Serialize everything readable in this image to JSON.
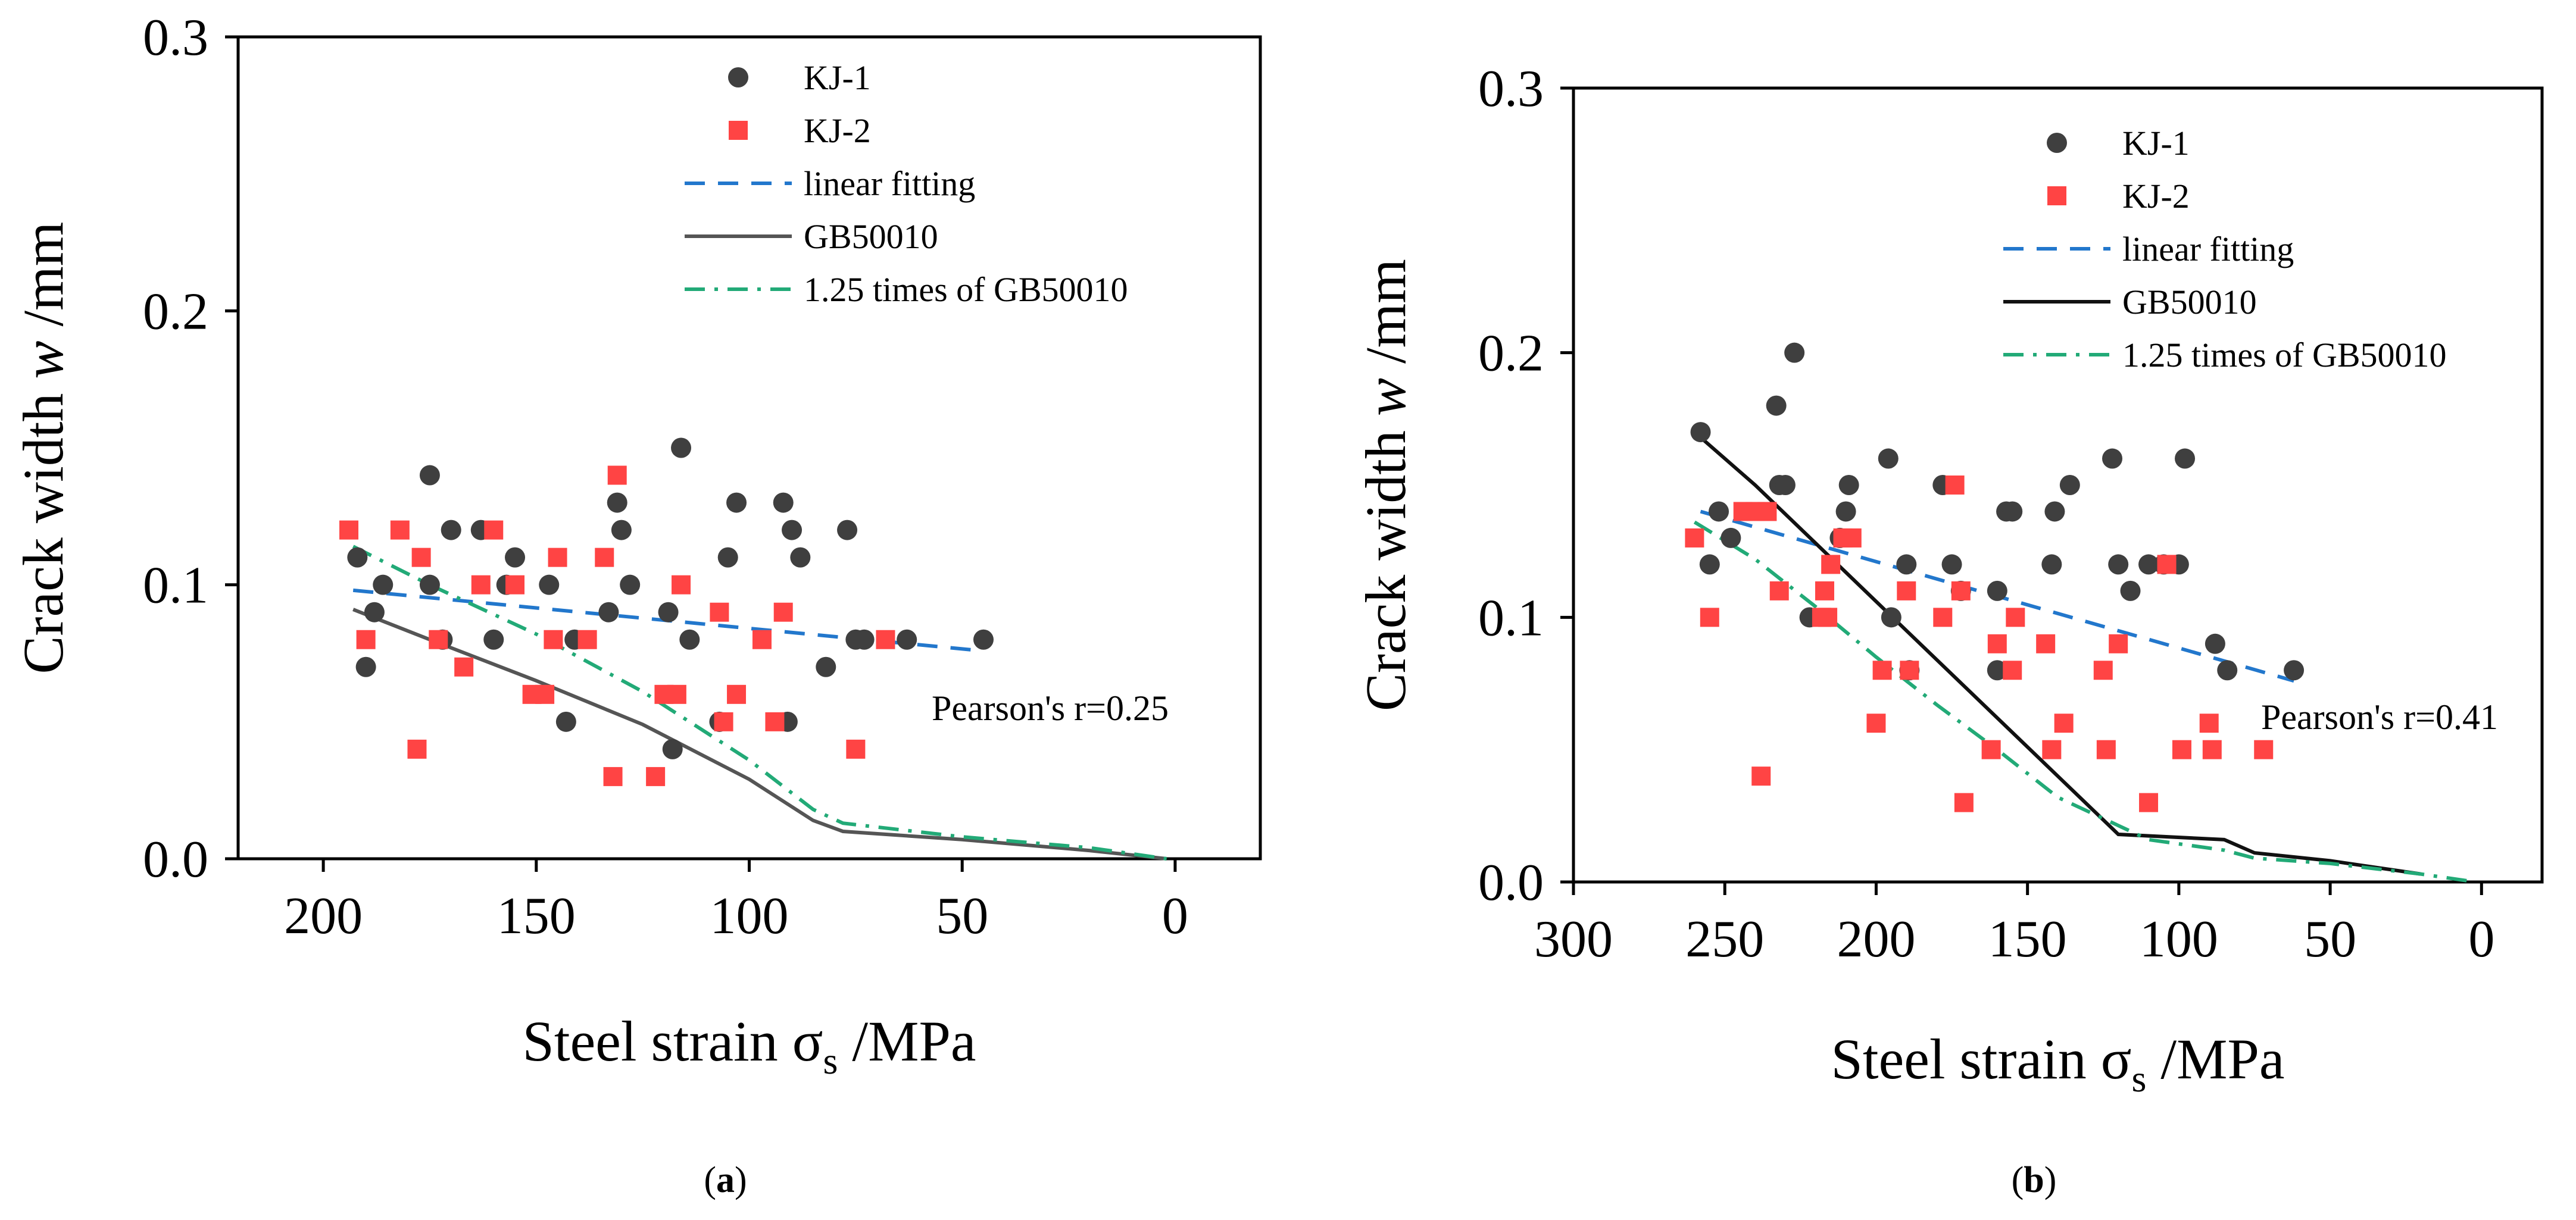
{
  "chart_data": [
    {
      "type": "scatter",
      "panel": "(a)",
      "panel_letter": "a",
      "xlabel": "Steel strain σs /MPa",
      "xlabel_main": "Steel strain σ",
      "xlabel_sub": "s",
      "xlabel_unit": " /MPa",
      "ylabel": "Crack width w /mm",
      "ylabel_pre": "Crack width ",
      "ylabel_var": "w",
      "ylabel_unit": " /mm",
      "xlim": [
        220,
        -20
      ],
      "ylim": [
        0,
        0.3
      ],
      "xticks": [
        200,
        150,
        100,
        50,
        0
      ],
      "xtick_labels": [
        "200",
        "150",
        "100",
        "50",
        "0"
      ],
      "yticks": [
        0.0,
        0.1,
        0.2,
        0.3
      ],
      "ytick_labels": [
        "0.0",
        "0.1",
        "0.2",
        "0.3"
      ],
      "legend": [
        "KJ-1",
        "KJ-2",
        "linear fitting",
        "GB50010",
        "1.25 times of GB50010"
      ],
      "annotation": "Pearson's r=0.25",
      "series": [
        {
          "name": "KJ-1",
          "marker": "circle",
          "color": "#3f3f3f",
          "points": [
            [
              192,
              0.11
            ],
            [
              190,
              0.07
            ],
            [
              188,
              0.09
            ],
            [
              186,
              0.1
            ],
            [
              175,
              0.14
            ],
            [
              175,
              0.1
            ],
            [
              172,
              0.08
            ],
            [
              170,
              0.12
            ],
            [
              163,
              0.12
            ],
            [
              160,
              0.08
            ],
            [
              157,
              0.1
            ],
            [
              155,
              0.11
            ],
            [
              147,
              0.1
            ],
            [
              143,
              0.05
            ],
            [
              141,
              0.08
            ],
            [
              133,
              0.09
            ],
            [
              131,
              0.13
            ],
            [
              130,
              0.12
            ],
            [
              128,
              0.1
            ],
            [
              119,
              0.09
            ],
            [
              118,
              0.04
            ],
            [
              116,
              0.15
            ],
            [
              114,
              0.08
            ],
            [
              107,
              0.05
            ],
            [
              105,
              0.11
            ],
            [
              103,
              0.13
            ],
            [
              92,
              0.13
            ],
            [
              91,
              0.05
            ],
            [
              90,
              0.12
            ],
            [
              88,
              0.11
            ],
            [
              82,
              0.07
            ],
            [
              77,
              0.12
            ],
            [
              75,
              0.08
            ],
            [
              73,
              0.08
            ],
            [
              63,
              0.08
            ],
            [
              45,
              0.08
            ]
          ]
        },
        {
          "name": "KJ-2",
          "marker": "square",
          "color": "#ff4444",
          "points": [
            [
              194,
              0.12
            ],
            [
              190,
              0.08
            ],
            [
              182,
              0.12
            ],
            [
              178,
              0.04
            ],
            [
              177,
              0.11
            ],
            [
              173,
              0.08
            ],
            [
              167,
              0.07
            ],
            [
              163,
              0.1
            ],
            [
              160,
              0.12
            ],
            [
              155,
              0.1
            ],
            [
              151,
              0.06
            ],
            [
              148,
              0.06
            ],
            [
              146,
              0.08
            ],
            [
              145,
              0.11
            ],
            [
              138,
              0.08
            ],
            [
              134,
              0.11
            ],
            [
              132,
              0.03
            ],
            [
              131,
              0.14
            ],
            [
              122,
              0.03
            ],
            [
              120,
              0.06
            ],
            [
              117,
              0.06
            ],
            [
              116,
              0.1
            ],
            [
              107,
              0.09
            ],
            [
              106,
              0.05
            ],
            [
              103,
              0.06
            ],
            [
              97,
              0.08
            ],
            [
              94,
              0.05
            ],
            [
              92,
              0.09
            ],
            [
              75,
              0.04
            ],
            [
              68,
              0.08
            ]
          ]
        },
        {
          "name": "linear fitting",
          "style": "dashed",
          "color": "#2277cc",
          "points": [
            [
              193,
              0.098
            ],
            [
              46,
              0.076
            ]
          ]
        },
        {
          "name": "GB50010",
          "style": "solid",
          "color": "#555555",
          "points": [
            [
              193,
              0.091
            ],
            [
              175,
              0.08
            ],
            [
              150,
              0.065
            ],
            [
              125,
              0.049
            ],
            [
              100,
              0.029
            ],
            [
              85,
              0.014
            ],
            [
              78,
              0.01
            ],
            [
              50,
              0.007
            ],
            [
              20,
              0.003
            ],
            [
              2,
              0.0
            ]
          ]
        },
        {
          "name": "1.25 times of GB50010",
          "style": "dashdot",
          "color": "#22aa77",
          "points": [
            [
              193,
              0.114
            ],
            [
              175,
              0.1
            ],
            [
              150,
              0.082
            ],
            [
              125,
              0.061
            ],
            [
              100,
              0.036
            ],
            [
              85,
              0.018
            ],
            [
              78,
              0.013
            ],
            [
              50,
              0.008
            ],
            [
              20,
              0.004
            ],
            [
              2,
              0.0
            ]
          ]
        }
      ]
    },
    {
      "type": "scatter",
      "panel": "(b)",
      "panel_letter": "b",
      "xlabel": "Steel strain σs /MPa",
      "xlabel_main": "Steel strain σ",
      "xlabel_sub": "s",
      "xlabel_unit": " /MPa",
      "ylabel": "Crack width w /mm",
      "ylabel_pre": "Crack width ",
      "ylabel_var": "w",
      "ylabel_unit": " /mm",
      "xlim": [
        300,
        -20
      ],
      "ylim": [
        0,
        0.3
      ],
      "xticks": [
        300,
        250,
        200,
        150,
        100,
        50,
        0
      ],
      "xtick_labels": [
        "300",
        "250",
        "200",
        "150",
        "100",
        "50",
        "0"
      ],
      "yticks": [
        0.0,
        0.1,
        0.2,
        0.3
      ],
      "ytick_labels": [
        "0.0",
        "0.1",
        "0.2",
        "0.3"
      ],
      "legend": [
        "KJ-1",
        "KJ-2",
        "linear fitting",
        "GB50010",
        "1.25 times of GB50010"
      ],
      "annotation": "Pearson's r=0.41",
      "series": [
        {
          "name": "KJ-1",
          "marker": "circle",
          "color": "#3f3f3f",
          "points": [
            [
              258,
              0.17
            ],
            [
              255,
              0.12
            ],
            [
              252,
              0.14
            ],
            [
              248,
              0.13
            ],
            [
              233,
              0.18
            ],
            [
              232,
              0.15
            ],
            [
              230,
              0.15
            ],
            [
              227,
              0.2
            ],
            [
              222,
              0.1
            ],
            [
              212,
              0.13
            ],
            [
              210,
              0.14
            ],
            [
              209,
              0.15
            ],
            [
              196,
              0.16
            ],
            [
              195,
              0.1
            ],
            [
              190,
              0.12
            ],
            [
              189,
              0.08
            ],
            [
              178,
              0.15
            ],
            [
              175,
              0.12
            ],
            [
              172,
              0.11
            ],
            [
              160,
              0.08
            ],
            [
              160,
              0.11
            ],
            [
              157,
              0.14
            ],
            [
              155,
              0.14
            ],
            [
              142,
              0.12
            ],
            [
              141,
              0.14
            ],
            [
              136,
              0.15
            ],
            [
              122,
              0.16
            ],
            [
              120,
              0.12
            ],
            [
              116,
              0.11
            ],
            [
              110,
              0.12
            ],
            [
              105,
              0.12
            ],
            [
              100,
              0.12
            ],
            [
              98,
              0.16
            ],
            [
              88,
              0.09
            ],
            [
              84,
              0.08
            ],
            [
              62,
              0.08
            ]
          ]
        },
        {
          "name": "KJ-2",
          "marker": "square",
          "color": "#ff4444",
          "points": [
            [
              260,
              0.13
            ],
            [
              255,
              0.1
            ],
            [
              244,
              0.14
            ],
            [
              240,
              0.14
            ],
            [
              238,
              0.04
            ],
            [
              236,
              0.14
            ],
            [
              232,
              0.11
            ],
            [
              218,
              0.1
            ],
            [
              217,
              0.11
            ],
            [
              216,
              0.1
            ],
            [
              215,
              0.12
            ],
            [
              211,
              0.13
            ],
            [
              208,
              0.13
            ],
            [
              200,
              0.06
            ],
            [
              198,
              0.08
            ],
            [
              190,
              0.11
            ],
            [
              189,
              0.08
            ],
            [
              178,
              0.1
            ],
            [
              174,
              0.15
            ],
            [
              172,
              0.11
            ],
            [
              171,
              0.03
            ],
            [
              162,
              0.05
            ],
            [
              160,
              0.09
            ],
            [
              155,
              0.08
            ],
            [
              154,
              0.1
            ],
            [
              144,
              0.09
            ],
            [
              142,
              0.05
            ],
            [
              138,
              0.06
            ],
            [
              125,
              0.08
            ],
            [
              124,
              0.05
            ],
            [
              120,
              0.09
            ],
            [
              110,
              0.03
            ],
            [
              104,
              0.12
            ],
            [
              99,
              0.05
            ],
            [
              90,
              0.06
            ],
            [
              89,
              0.05
            ],
            [
              72,
              0.05
            ]
          ]
        },
        {
          "name": "linear fitting",
          "style": "dashed",
          "color": "#2277cc",
          "points": [
            [
              258,
              0.14
            ],
            [
              62,
              0.076
            ]
          ]
        },
        {
          "name": "GB50010",
          "style": "solid",
          "color": "#111111",
          "points": [
            [
              260,
              0.17
            ],
            [
              240,
              0.15
            ],
            [
              220,
              0.128
            ],
            [
              200,
              0.106
            ],
            [
              180,
              0.084
            ],
            [
              160,
              0.062
            ],
            [
              140,
              0.04
            ],
            [
              120,
              0.018
            ],
            [
              85,
              0.016
            ],
            [
              75,
              0.011
            ],
            [
              50,
              0.008
            ],
            [
              20,
              0.003
            ]
          ]
        },
        {
          "name": "1.25 times of GB50010",
          "style": "dashdot",
          "color": "#22aa77",
          "points": [
            [
              260,
              0.136
            ],
            [
              240,
              0.122
            ],
            [
              220,
              0.104
            ],
            [
              200,
              0.085
            ],
            [
              180,
              0.067
            ],
            [
              160,
              0.05
            ],
            [
              140,
              0.032
            ],
            [
              110,
              0.016
            ],
            [
              85,
              0.012
            ],
            [
              75,
              0.009
            ],
            [
              50,
              0.007
            ],
            [
              20,
              0.003
            ],
            [
              2,
              0.0
            ]
          ]
        }
      ]
    }
  ]
}
